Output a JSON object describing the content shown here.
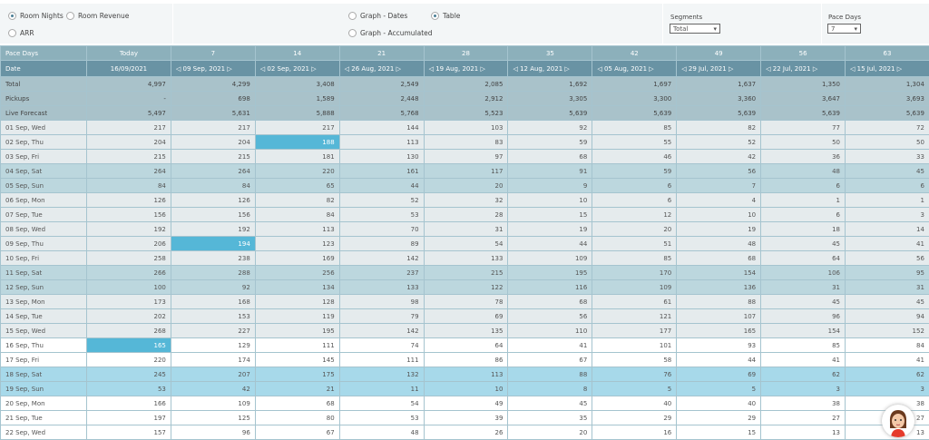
{
  "controls": {
    "metric_options": [
      {
        "label": "Room Nights",
        "selected": true
      },
      {
        "label": "Room Revenue",
        "selected": false
      },
      {
        "label": "ARR",
        "selected": false
      }
    ],
    "view_options": [
      {
        "label": "Graph - Dates",
        "selected": false
      },
      {
        "label": "Table",
        "selected": true
      },
      {
        "label": "Graph - Accumulated",
        "selected": false
      }
    ],
    "segments_label": "Segments",
    "segments_value": "Total",
    "pace_days_label": "Pace Days",
    "pace_days_value": "7"
  },
  "table": {
    "pace_row_label": "Pace Days",
    "pace_days": [
      "Today",
      "7",
      "14",
      "21",
      "28",
      "35",
      "42",
      "49",
      "56",
      "63"
    ],
    "date_row_label": "Date",
    "dates": [
      "16/09/2021",
      "09 Sep, 2021",
      "02 Sep, 2021",
      "26 Aug, 2021",
      "19 Aug, 2021",
      "12 Aug, 2021",
      "05 Aug, 2021",
      "29 Jul, 2021",
      "22 Jul, 2021",
      "15 Jul, 2021"
    ],
    "summary": [
      {
        "label": "Total",
        "values": [
          "4,997",
          "4,299",
          "3,408",
          "2,549",
          "2,085",
          "1,692",
          "1,697",
          "1,637",
          "1,350",
          "1,304"
        ]
      },
      {
        "label": "Pickups",
        "values": [
          "-",
          "698",
          "1,589",
          "2,448",
          "2,912",
          "3,305",
          "3,300",
          "3,360",
          "3,647",
          "3,693"
        ]
      },
      {
        "label": "Live Forecast",
        "values": [
          "5,497",
          "5,631",
          "5,888",
          "5,768",
          "5,523",
          "5,639",
          "5,639",
          "5,639",
          "5,639",
          "5,639"
        ]
      }
    ],
    "rows": [
      {
        "label": "01 Sep, Wed",
        "style": "wd",
        "values": [
          "217",
          "217",
          "217",
          "144",
          "103",
          "92",
          "85",
          "82",
          "77",
          "72"
        ]
      },
      {
        "label": "02 Sep, Thu",
        "style": "wd",
        "mark": 2,
        "values": [
          "204",
          "204",
          "188",
          "113",
          "83",
          "59",
          "55",
          "52",
          "50",
          "50"
        ]
      },
      {
        "label": "03 Sep, Fri",
        "style": "wd",
        "values": [
          "215",
          "215",
          "181",
          "130",
          "97",
          "68",
          "46",
          "42",
          "36",
          "33"
        ]
      },
      {
        "label": "04 Sep, Sat",
        "style": "we",
        "values": [
          "264",
          "264",
          "220",
          "161",
          "117",
          "91",
          "59",
          "56",
          "48",
          "45"
        ]
      },
      {
        "label": "05 Sep, Sun",
        "style": "we",
        "values": [
          "84",
          "84",
          "65",
          "44",
          "20",
          "9",
          "6",
          "7",
          "6",
          "6"
        ]
      },
      {
        "label": "06 Sep, Mon",
        "style": "wd",
        "values": [
          "126",
          "126",
          "82",
          "52",
          "32",
          "10",
          "6",
          "4",
          "1",
          "1"
        ]
      },
      {
        "label": "07 Sep, Tue",
        "style": "wd",
        "values": [
          "156",
          "156",
          "84",
          "53",
          "28",
          "15",
          "12",
          "10",
          "6",
          "3"
        ]
      },
      {
        "label": "08 Sep, Wed",
        "style": "wd",
        "values": [
          "192",
          "192",
          "113",
          "70",
          "31",
          "19",
          "20",
          "19",
          "18",
          "14"
        ]
      },
      {
        "label": "09 Sep, Thu",
        "style": "wd",
        "mark": 1,
        "values": [
          "206",
          "194",
          "123",
          "89",
          "54",
          "44",
          "51",
          "48",
          "45",
          "41"
        ]
      },
      {
        "label": "10 Sep, Fri",
        "style": "wd",
        "values": [
          "258",
          "238",
          "169",
          "142",
          "133",
          "109",
          "85",
          "68",
          "64",
          "56"
        ]
      },
      {
        "label": "11 Sep, Sat",
        "style": "we",
        "values": [
          "266",
          "288",
          "256",
          "237",
          "215",
          "195",
          "170",
          "154",
          "106",
          "95"
        ]
      },
      {
        "label": "12 Sep, Sun",
        "style": "we",
        "values": [
          "100",
          "92",
          "134",
          "133",
          "122",
          "116",
          "109",
          "136",
          "31",
          "31"
        ]
      },
      {
        "label": "13 Sep, Mon",
        "style": "wd",
        "values": [
          "173",
          "168",
          "128",
          "98",
          "78",
          "68",
          "61",
          "88",
          "45",
          "45"
        ]
      },
      {
        "label": "14 Sep, Tue",
        "style": "wd",
        "values": [
          "202",
          "153",
          "119",
          "79",
          "69",
          "56",
          "121",
          "107",
          "96",
          "94"
        ]
      },
      {
        "label": "15 Sep, Wed",
        "style": "wd",
        "values": [
          "268",
          "227",
          "195",
          "142",
          "135",
          "110",
          "177",
          "165",
          "154",
          "152"
        ]
      },
      {
        "label": "16 Sep, Thu",
        "style": "wh",
        "mark": 0,
        "values": [
          "165",
          "129",
          "111",
          "74",
          "64",
          "41",
          "101",
          "93",
          "85",
          "84"
        ]
      },
      {
        "label": "17 Sep, Fri",
        "style": "wh",
        "values": [
          "220",
          "174",
          "145",
          "111",
          "86",
          "67",
          "58",
          "44",
          "41",
          "41"
        ]
      },
      {
        "label": "18 Sep, Sat",
        "style": "hl",
        "values": [
          "245",
          "207",
          "175",
          "132",
          "113",
          "88",
          "76",
          "69",
          "62",
          "62"
        ]
      },
      {
        "label": "19 Sep, Sun",
        "style": "hl",
        "values": [
          "53",
          "42",
          "21",
          "11",
          "10",
          "8",
          "5",
          "5",
          "3",
          "3"
        ]
      },
      {
        "label": "20 Sep, Mon",
        "style": "wh",
        "values": [
          "166",
          "109",
          "68",
          "54",
          "49",
          "45",
          "40",
          "40",
          "38",
          "38"
        ]
      },
      {
        "label": "21 Sep, Tue",
        "style": "wh",
        "values": [
          "197",
          "125",
          "80",
          "53",
          "39",
          "35",
          "29",
          "29",
          "27",
          "27"
        ]
      },
      {
        "label": "22 Sep, Wed",
        "style": "wh",
        "values": [
          "157",
          "96",
          "67",
          "48",
          "26",
          "20",
          "16",
          "15",
          "13",
          "13"
        ]
      }
    ]
  }
}
